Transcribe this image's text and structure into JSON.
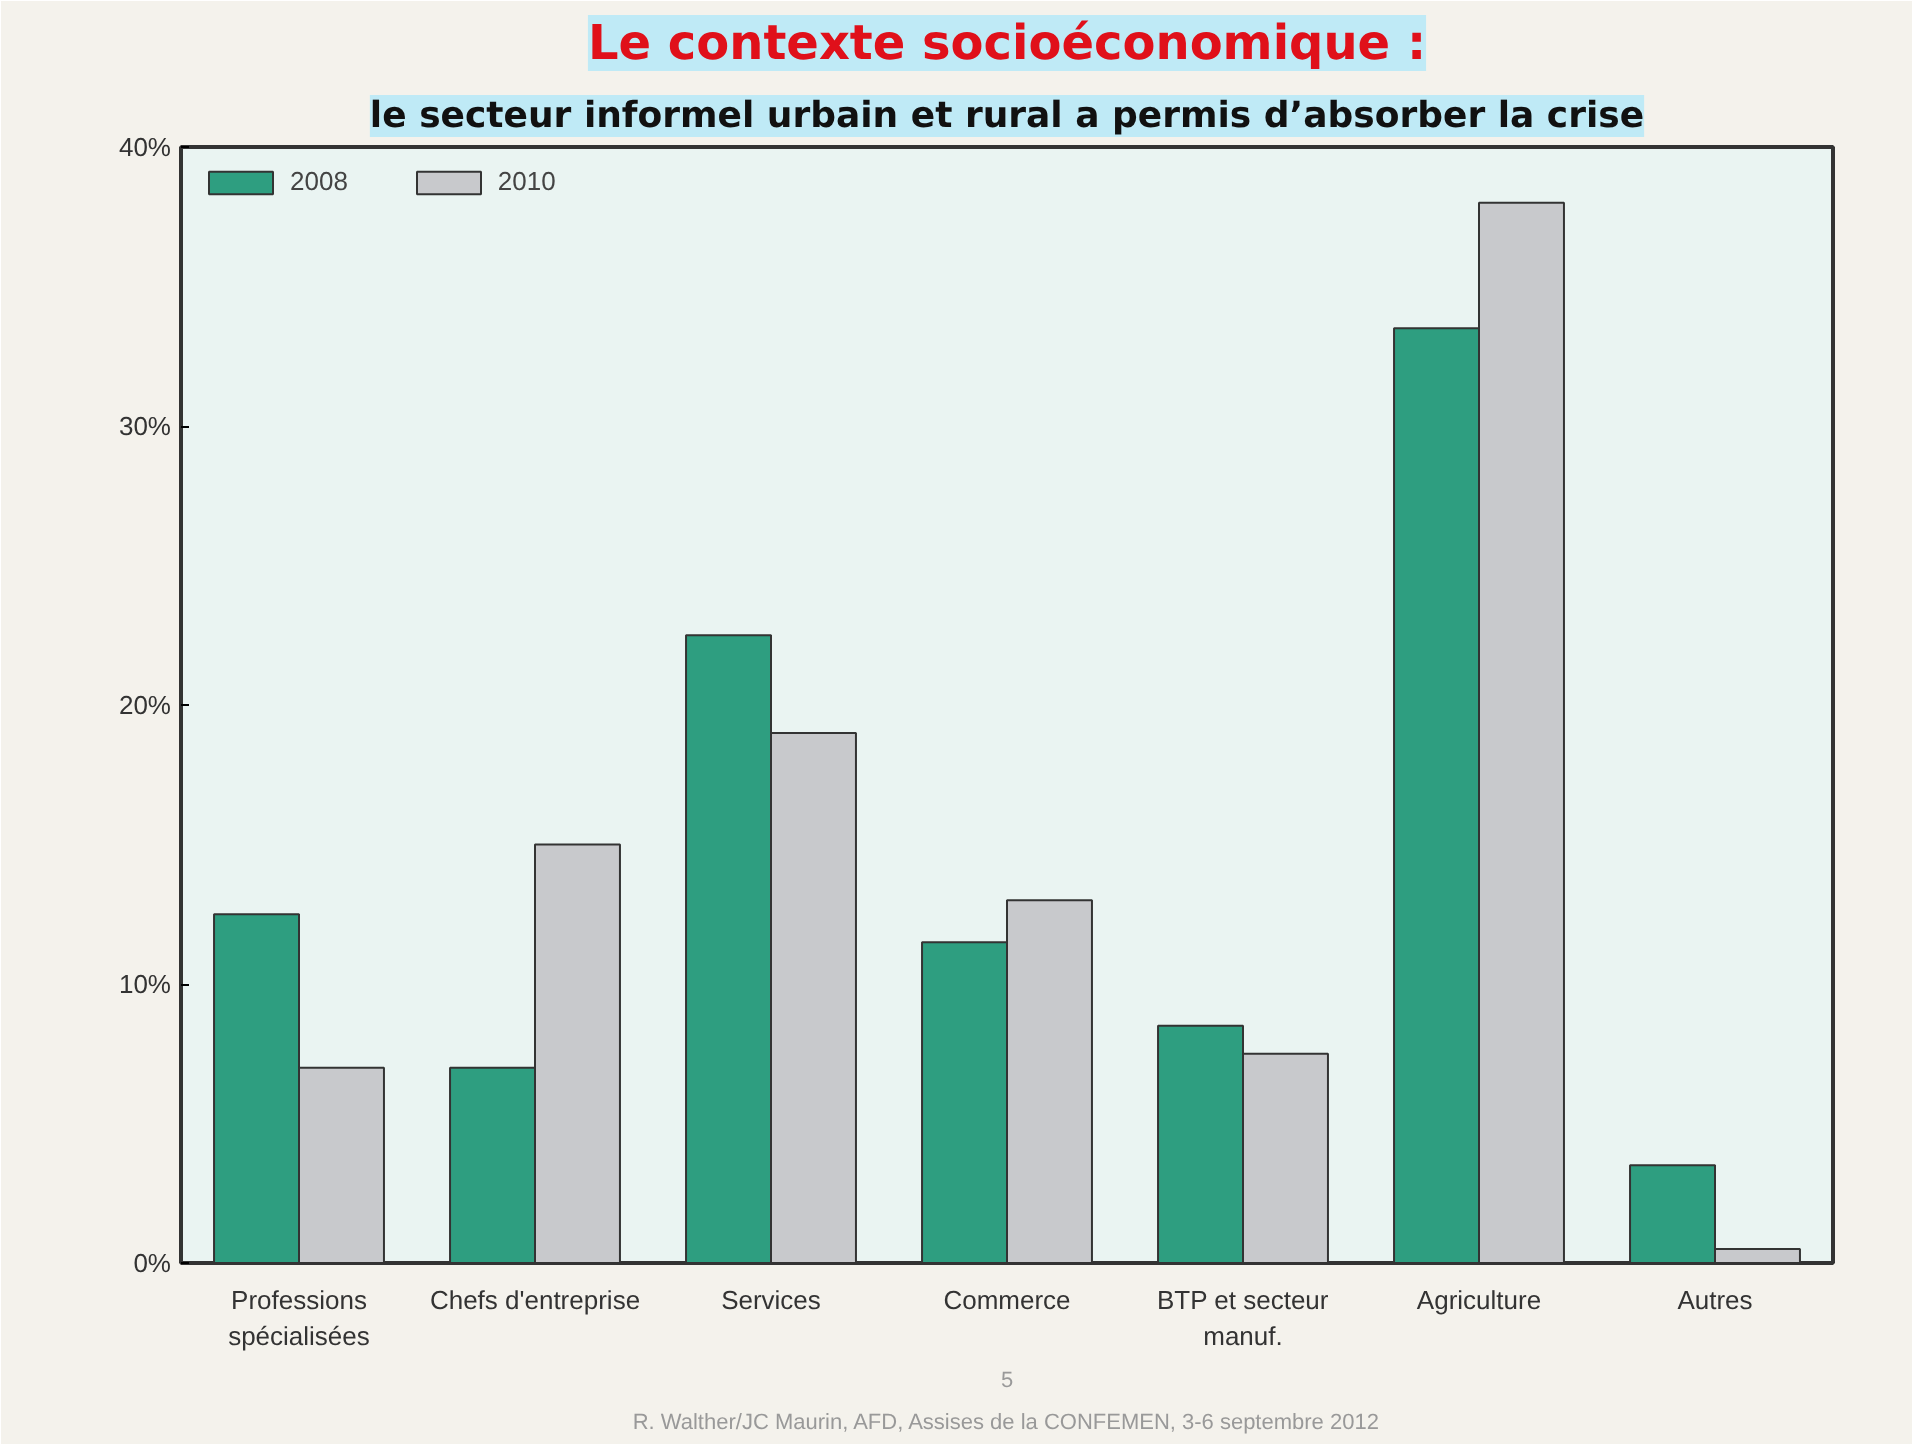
{
  "chart_data": {
    "type": "bar",
    "title": "Le contexte socioéconomique :",
    "subtitle": "le secteur informel urbain et rural a permis d’absorber la crise",
    "categories": [
      "Professions spécialisées",
      "Chefs d'entreprise",
      "Services",
      "Commerce",
      "BTP et secteur manuf.",
      "Agriculture",
      "Autres"
    ],
    "series": [
      {
        "name": "2008",
        "color": "#2e9e80",
        "values": [
          12.5,
          7,
          22.5,
          11.5,
          8.5,
          33.5,
          3.5
        ]
      },
      {
        "name": "2010",
        "color": "#c8c9cc",
        "values": [
          7,
          15,
          19,
          13,
          7.5,
          38,
          0.5
        ]
      }
    ],
    "ylim": [
      0,
      40
    ],
    "yticks": [
      {
        "value": 0,
        "label": "0%"
      },
      {
        "value": 10,
        "label": "10%"
      },
      {
        "value": 20,
        "label": "20%"
      },
      {
        "value": 30,
        "label": "30%"
      },
      {
        "value": 40,
        "label": "40%"
      }
    ],
    "grid": false,
    "legend": "top left",
    "annotations": [
      "R. Walther/JC Maurin, AFD, Assises de la CONFEMEN, 3-6 septembre 2012",
      "5"
    ]
  }
}
